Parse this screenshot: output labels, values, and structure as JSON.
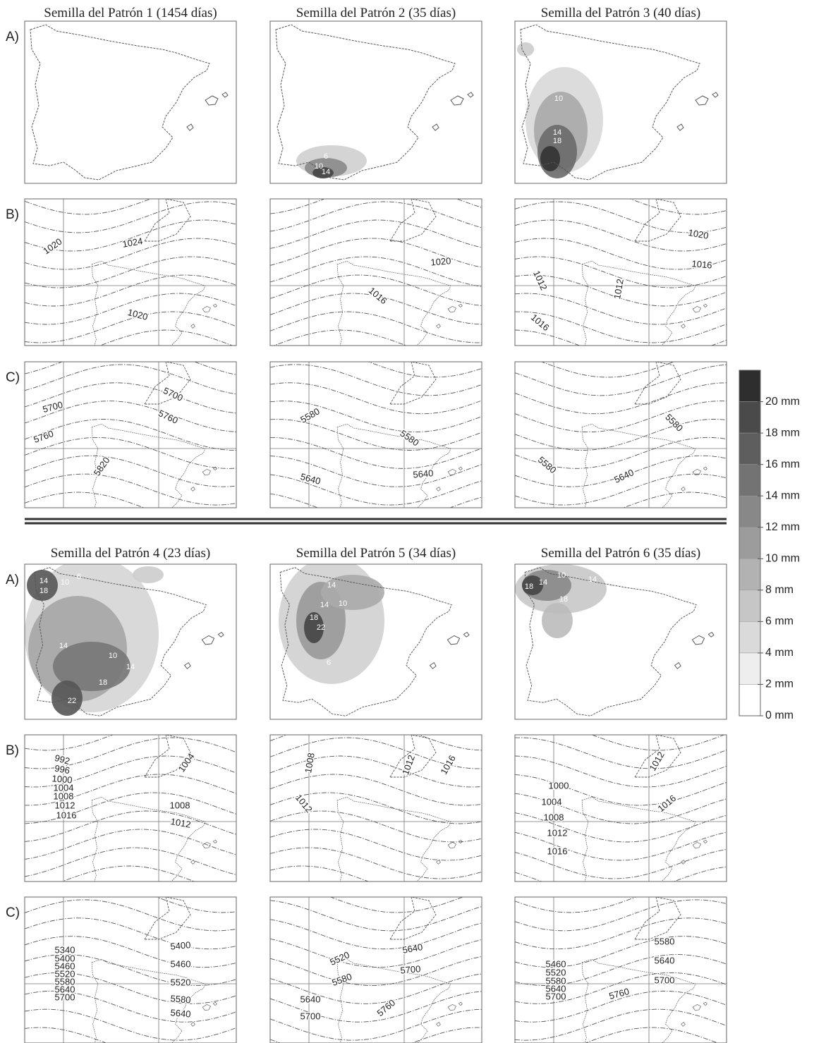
{
  "figure": {
    "top": {
      "row_labels": [
        "A)",
        "B)",
        "C)"
      ],
      "panels": [
        {
          "title": "Semilla del Patrón 1 (1454 días)",
          "A": [],
          "B": [
            1020,
            1024,
            1020
          ],
          "C": [
            5700,
            5700,
            5760,
            5760,
            5820
          ]
        },
        {
          "title": "Semilla del Patrón 2 (35 días)",
          "A": [
            6,
            10,
            14
          ],
          "B": [
            1020,
            1016
          ],
          "C": [
            5580,
            5580,
            5640,
            5640
          ]
        },
        {
          "title": "Semilla del Patrón 3 (40 días)",
          "A": [
            10,
            14,
            18
          ],
          "B": [
            1020,
            1016,
            1012,
            1012,
            1016
          ],
          "C": [
            5580,
            5580,
            5640
          ]
        }
      ]
    },
    "bottom": {
      "row_labels": [
        "A)",
        "B)",
        "C)"
      ],
      "panels": [
        {
          "title": "Semilla del Patrón 4 (23 días)",
          "A": [
            14,
            18,
            10,
            6,
            14,
            10,
            14,
            18,
            22
          ],
          "B": [
            992,
            996,
            1000,
            1004,
            1008,
            1012,
            1016,
            1004,
            1008,
            1012
          ],
          "C": [
            5340,
            5400,
            5460,
            5520,
            5580,
            5640,
            5700,
            5400,
            5460,
            5520,
            5580,
            5640
          ]
        },
        {
          "title": "Semilla del Patrón 5 (34 días)",
          "A": [
            14,
            18,
            22,
            10,
            6,
            14
          ],
          "B": [
            1008,
            1012,
            1016,
            1012
          ],
          "C": [
            5520,
            5640,
            5580,
            5700,
            5640,
            5700,
            5760
          ]
        },
        {
          "title": "Semilla del Patrón 6 (35 días)",
          "A": [
            18,
            14,
            10,
            14,
            18
          ],
          "B": [
            1000,
            1004,
            1008,
            1012,
            1016,
            1012,
            1016
          ],
          "C": [
            5580,
            5640,
            5700,
            5460,
            5520,
            5580,
            5640,
            5700,
            5760
          ]
        }
      ]
    },
    "legend": {
      "labels": [
        "20 mm",
        "18 mm",
        "16 mm",
        "14 mm",
        "12 mm",
        "10 mm",
        "8 mm",
        "6 mm",
        "4 mm",
        "2 mm",
        "0 mm"
      ]
    }
  }
}
